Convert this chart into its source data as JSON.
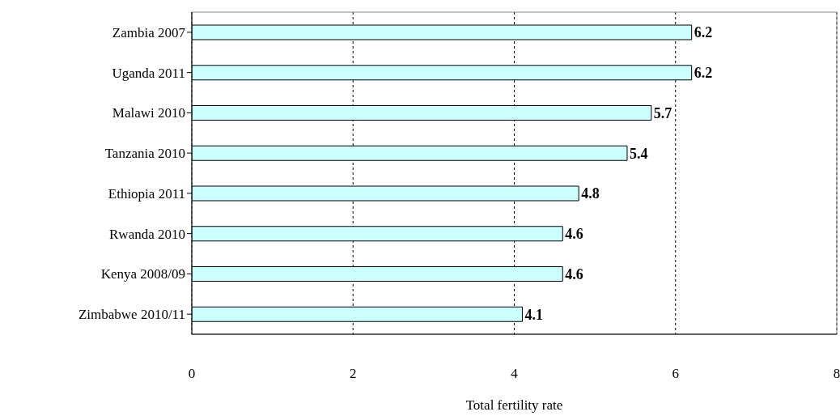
{
  "chart_data": {
    "type": "bar",
    "orientation": "horizontal",
    "xlabel": "Total fertility rate",
    "categories": [
      "Zambia 2007",
      "Uganda 2011",
      "Malawi 2010",
      "Tanzania 2010",
      "Ethiopia 2011",
      "Rwanda 2010",
      "Kenya 2008/09",
      "Zimbabwe 2010/11"
    ],
    "values": [
      6.2,
      6.2,
      5.7,
      5.4,
      4.8,
      4.6,
      4.6,
      4.1
    ],
    "color": "#ccffff",
    "xlim": [
      0,
      8
    ],
    "xticks": [
      0,
      2,
      4,
      6,
      8
    ],
    "grid": "x",
    "data_labels": true
  }
}
